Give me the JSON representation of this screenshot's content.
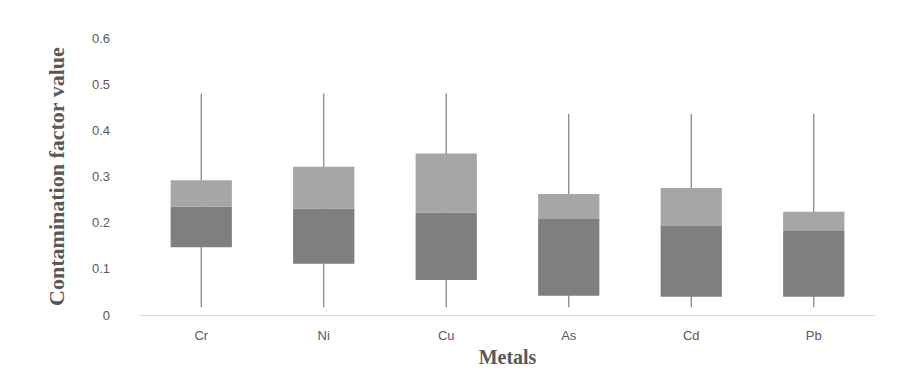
{
  "chart_data": {
    "type": "boxplot",
    "x_label": "Metals",
    "y_label": "Contamination factor value",
    "categories": [
      "Cr",
      "Ni",
      "Cu",
      "As",
      "Cd",
      "Pb"
    ],
    "min": [
      0.017,
      0.017,
      0.017,
      0.017,
      0.017,
      0.017
    ],
    "q1": [
      0.147,
      0.111,
      0.076,
      0.042,
      0.04,
      0.04
    ],
    "median": [
      0.235,
      0.231,
      0.222,
      0.208,
      0.193,
      0.182
    ],
    "q3": [
      0.292,
      0.321,
      0.35,
      0.262,
      0.275,
      0.224
    ],
    "max": [
      0.48,
      0.48,
      0.48,
      0.436,
      0.436,
      0.436
    ],
    "colors": [
      "#7f7f7f",
      "#a6a6a6"
    ],
    "ylim": [
      0,
      0.6
    ],
    "yticks": [
      0,
      0.1,
      0.2,
      0.3,
      0.4,
      0.5,
      0.6
    ],
    "grid": false
  }
}
